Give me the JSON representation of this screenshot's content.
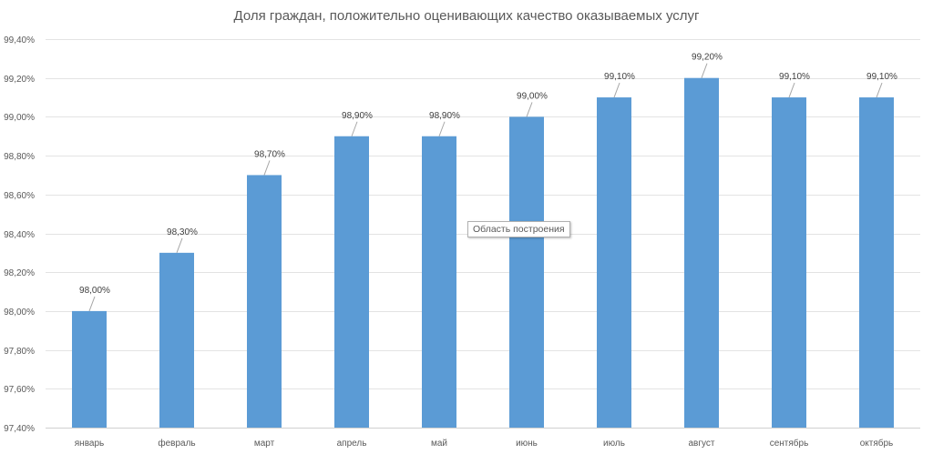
{
  "chart_data": {
    "type": "bar",
    "title": "Доля граждан, положительно оценивающих качество оказываемых услуг",
    "xlabel": "",
    "ylabel": "",
    "categories": [
      "январь",
      "февраль",
      "март",
      "апрель",
      "май",
      "июнь",
      "июль",
      "август",
      "сентябрь",
      "октябрь"
    ],
    "values": [
      98.0,
      98.3,
      98.7,
      98.9,
      98.9,
      99.0,
      99.1,
      99.2,
      99.1,
      99.1
    ],
    "value_labels": [
      "98,00%",
      "98,30%",
      "98,70%",
      "98,90%",
      "98,90%",
      "99,00%",
      "99,10%",
      "99,20%",
      "99,10%",
      "99,10%"
    ],
    "ylim": [
      97.4,
      99.4
    ],
    "yticks": [
      97.4,
      97.6,
      97.8,
      98.0,
      98.2,
      98.4,
      98.6,
      98.8,
      99.0,
      99.2,
      99.4
    ],
    "ytick_labels": [
      "97,40%",
      "97,60%",
      "97,80%",
      "98,00%",
      "98,20%",
      "98,40%",
      "98,60%",
      "98,80%",
      "99,00%",
      "99,20%",
      "99,40%"
    ],
    "grid": true,
    "legend": "none",
    "bar_color": "#5B9BD5"
  },
  "tooltip": {
    "text": "Область построения"
  }
}
